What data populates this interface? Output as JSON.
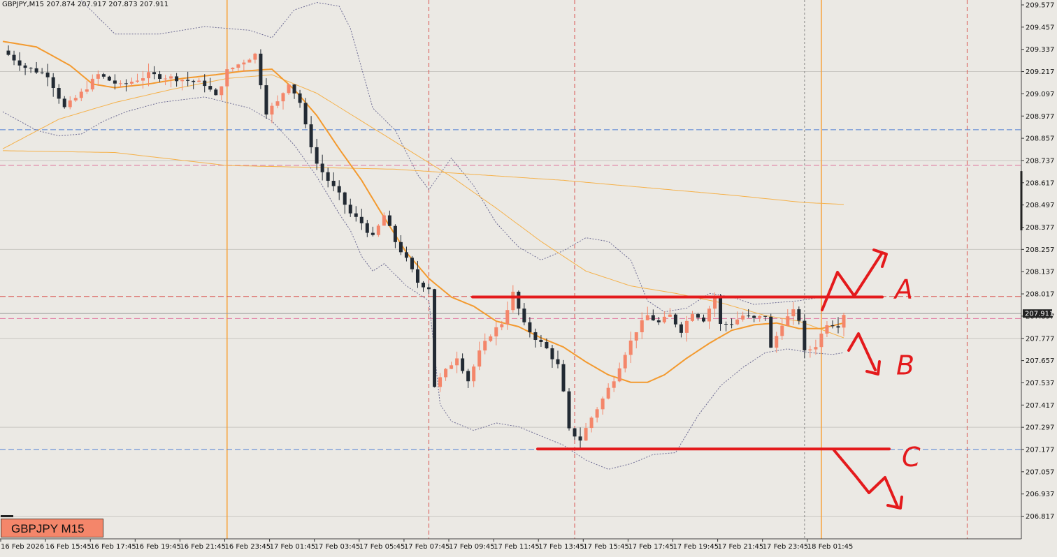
{
  "window": {
    "header": "GBPJPY,M15  207.874 207.917 207.873 207.911",
    "badge": "GBPJPY M15"
  },
  "colors": {
    "background": "#ebe9e4",
    "bull": "#f4866a",
    "bear": "#222a33",
    "ma_fast": "#f39a2f",
    "ma_slow": "#f5b14a",
    "bands": "#6e6c94",
    "session_solid": "#f7a23a",
    "session_dashed": "#d9534f",
    "level_blue": "#4f7fd4",
    "level_pink": "#e0709a",
    "annotation": "#e41a1c"
  },
  "chart_data": {
    "type": "candlestick",
    "symbol": "GBPJPY",
    "timeframe": "M15",
    "last_price": "207.911",
    "ylim": [
      206.77,
      209.6
    ],
    "y_ticks": [
      "209.577",
      "209.457",
      "209.337",
      "209.217",
      "209.097",
      "208.977",
      "208.857",
      "208.737",
      "208.617",
      "208.497",
      "208.377",
      "208.257",
      "208.137",
      "208.017",
      "207.897",
      "207.777",
      "207.657",
      "207.537",
      "207.417",
      "207.297",
      "207.177",
      "207.057",
      "206.937",
      "206.817"
    ],
    "x_labels": [
      "16 Feb 2026",
      "16 Feb 15:45",
      "16 Feb 17:45",
      "16 Feb 19:45",
      "16 Feb 21:45",
      "16 Feb 23:45",
      "17 Feb 01:45",
      "17 Feb 03:45",
      "17 Feb 05:45",
      "17 Feb 07:45",
      "17 Feb 09:45",
      "17 Feb 11:45",
      "17 Feb 13:45",
      "17 Feb 15:45",
      "17 Feb 17:45",
      "17 Feb 19:45",
      "17 Feb 21:45",
      "17 Feb 23:45",
      "18 Feb 01:45"
    ],
    "horizontal_levels": [
      {
        "price": 208.903,
        "style": "blue-dashed"
      },
      {
        "price": 208.711,
        "style": "pink-dashed"
      },
      {
        "price": 208.003,
        "style": "red-dashed"
      },
      {
        "price": 207.884,
        "style": "pink-dashed"
      },
      {
        "price": 207.177,
        "style": "blue-dashed"
      }
    ],
    "annotations": [
      {
        "label": "A",
        "price": 208.0,
        "meaning": "breakout up"
      },
      {
        "label": "B",
        "price": 207.88,
        "meaning": "reject down"
      },
      {
        "label": "C",
        "price": 207.18,
        "meaning": "break support down"
      }
    ],
    "anchors": [
      [
        0,
        209.33
      ],
      [
        4,
        209.24
      ],
      [
        8,
        209.2
      ],
      [
        11,
        209.02
      ],
      [
        14,
        209.1
      ],
      [
        17,
        209.2
      ],
      [
        21,
        209.14
      ],
      [
        26,
        209.2
      ],
      [
        31,
        209.18
      ],
      [
        36,
        209.15
      ],
      [
        38,
        209.08
      ],
      [
        40,
        209.22
      ],
      [
        45,
        209.31
      ],
      [
        47,
        209.0
      ],
      [
        49,
        209.05
      ],
      [
        51,
        209.16
      ],
      [
        53,
        209.05
      ],
      [
        54,
        208.92
      ],
      [
        56,
        208.72
      ],
      [
        58,
        208.63
      ],
      [
        60,
        208.55
      ],
      [
        62,
        208.45
      ],
      [
        64,
        208.4
      ],
      [
        66,
        208.32
      ],
      [
        68,
        208.44
      ],
      [
        70,
        208.3
      ],
      [
        72,
        208.2
      ],
      [
        74,
        208.08
      ],
      [
        76,
        208.05
      ],
      [
        77,
        207.52
      ],
      [
        79,
        207.6
      ],
      [
        81,
        207.68
      ],
      [
        83,
        207.55
      ],
      [
        85,
        207.7
      ],
      [
        87,
        207.8
      ],
      [
        89,
        207.86
      ],
      [
        91,
        208.02
      ],
      [
        93,
        207.85
      ],
      [
        95,
        207.78
      ],
      [
        97,
        207.72
      ],
      [
        99,
        207.63
      ],
      [
        100,
        207.48
      ],
      [
        101,
        207.28
      ],
      [
        103,
        207.23
      ],
      [
        105,
        207.35
      ],
      [
        107,
        207.45
      ],
      [
        109,
        207.56
      ],
      [
        111,
        207.7
      ],
      [
        113,
        207.82
      ],
      [
        115,
        207.9
      ],
      [
        117,
        207.86
      ],
      [
        119,
        207.9
      ],
      [
        121,
        207.82
      ],
      [
        123,
        207.92
      ],
      [
        125,
        207.88
      ],
      [
        127,
        208.0
      ],
      [
        128,
        207.85
      ],
      [
        130,
        207.86
      ],
      [
        132,
        207.9
      ],
      [
        134,
        207.88
      ],
      [
        136,
        207.9
      ],
      [
        137,
        207.72
      ],
      [
        139,
        207.86
      ],
      [
        141,
        207.92
      ],
      [
        142,
        207.88
      ],
      [
        143,
        207.7
      ],
      [
        145,
        207.74
      ],
      [
        147,
        207.86
      ],
      [
        149,
        207.85
      ],
      [
        150,
        207.911
      ]
    ],
    "ma_fast": [
      [
        0,
        209.38
      ],
      [
        6,
        209.35
      ],
      [
        12,
        209.25
      ],
      [
        16,
        209.15
      ],
      [
        20,
        209.13
      ],
      [
        26,
        209.15
      ],
      [
        32,
        209.18
      ],
      [
        38,
        209.2
      ],
      [
        43,
        209.22
      ],
      [
        48,
        209.23
      ],
      [
        52,
        209.12
      ],
      [
        56,
        208.98
      ],
      [
        60,
        208.8
      ],
      [
        64,
        208.63
      ],
      [
        68,
        208.43
      ],
      [
        72,
        208.24
      ],
      [
        76,
        208.1
      ],
      [
        80,
        208.0
      ],
      [
        84,
        207.95
      ],
      [
        88,
        207.87
      ],
      [
        92,
        207.84
      ],
      [
        96,
        207.78
      ],
      [
        100,
        207.73
      ],
      [
        104,
        207.65
      ],
      [
        108,
        207.58
      ],
      [
        112,
        207.54
      ],
      [
        115,
        207.54
      ],
      [
        118,
        207.58
      ],
      [
        122,
        207.67
      ],
      [
        126,
        207.75
      ],
      [
        130,
        207.82
      ],
      [
        134,
        207.85
      ],
      [
        138,
        207.86
      ],
      [
        142,
        207.83
      ],
      [
        146,
        207.83
      ],
      [
        150,
        207.86
      ]
    ],
    "ma_slow": [
      [
        0,
        208.8
      ],
      [
        10,
        208.96
      ],
      [
        20,
        209.05
      ],
      [
        30,
        209.12
      ],
      [
        40,
        209.18
      ],
      [
        48,
        209.2
      ],
      [
        56,
        209.1
      ],
      [
        64,
        208.95
      ],
      [
        72,
        208.8
      ],
      [
        80,
        208.65
      ],
      [
        88,
        208.48
      ],
      [
        96,
        208.3
      ],
      [
        104,
        208.14
      ],
      [
        112,
        208.06
      ],
      [
        120,
        208.02
      ],
      [
        128,
        207.97
      ],
      [
        136,
        207.9
      ],
      [
        142,
        207.87
      ],
      [
        150,
        207.78
      ]
    ],
    "ma_long": [
      [
        0,
        208.79
      ],
      [
        20,
        208.78
      ],
      [
        40,
        208.71
      ],
      [
        55,
        208.7
      ],
      [
        70,
        208.69
      ],
      [
        85,
        208.66
      ],
      [
        100,
        208.63
      ],
      [
        115,
        208.59
      ],
      [
        130,
        208.55
      ],
      [
        143,
        208.51
      ],
      [
        150,
        208.5
      ]
    ],
    "bb_upper": [
      [
        14,
        209.6
      ],
      [
        20,
        209.42
      ],
      [
        28,
        209.42
      ],
      [
        36,
        209.46
      ],
      [
        44,
        209.44
      ],
      [
        48,
        209.4
      ],
      [
        52,
        209.55
      ],
      [
        56,
        209.59
      ],
      [
        60,
        209.57
      ],
      [
        62,
        209.45
      ],
      [
        66,
        209.02
      ],
      [
        70,
        208.9
      ],
      [
        74,
        208.66
      ],
      [
        76,
        208.58
      ],
      [
        80,
        208.75
      ],
      [
        84,
        208.6
      ],
      [
        88,
        208.4
      ],
      [
        92,
        208.27
      ],
      [
        96,
        208.2
      ],
      [
        100,
        208.25
      ],
      [
        104,
        208.32
      ],
      [
        108,
        208.3
      ],
      [
        112,
        208.2
      ],
      [
        115,
        207.98
      ],
      [
        118,
        207.92
      ],
      [
        122,
        207.94
      ],
      [
        126,
        208.02
      ],
      [
        130,
        208.0
      ],
      [
        134,
        207.96
      ],
      [
        138,
        207.97
      ],
      [
        142,
        207.98
      ],
      [
        146,
        208.0
      ],
      [
        150,
        208.0
      ]
    ],
    "bb_lower": [
      [
        0,
        209.0
      ],
      [
        6,
        208.9
      ],
      [
        10,
        208.87
      ],
      [
        14,
        208.88
      ],
      [
        18,
        208.95
      ],
      [
        22,
        209.0
      ],
      [
        28,
        209.05
      ],
      [
        36,
        209.08
      ],
      [
        44,
        209.02
      ],
      [
        48,
        208.95
      ],
      [
        52,
        208.82
      ],
      [
        56,
        208.65
      ],
      [
        60,
        208.45
      ],
      [
        62,
        208.36
      ],
      [
        64,
        208.22
      ],
      [
        66,
        208.14
      ],
      [
        68,
        208.18
      ],
      [
        72,
        208.06
      ],
      [
        76,
        207.98
      ],
      [
        78,
        207.42
      ],
      [
        80,
        207.33
      ],
      [
        84,
        207.28
      ],
      [
        88,
        207.32
      ],
      [
        92,
        207.3
      ],
      [
        96,
        207.25
      ],
      [
        100,
        207.2
      ],
      [
        104,
        207.12
      ],
      [
        108,
        207.07
      ],
      [
        112,
        207.1
      ],
      [
        116,
        207.15
      ],
      [
        120,
        207.16
      ],
      [
        124,
        207.36
      ],
      [
        128,
        207.52
      ],
      [
        132,
        207.62
      ],
      [
        136,
        207.7
      ],
      [
        140,
        207.72
      ],
      [
        144,
        207.7
      ],
      [
        148,
        207.69
      ],
      [
        150,
        207.7
      ]
    ]
  }
}
